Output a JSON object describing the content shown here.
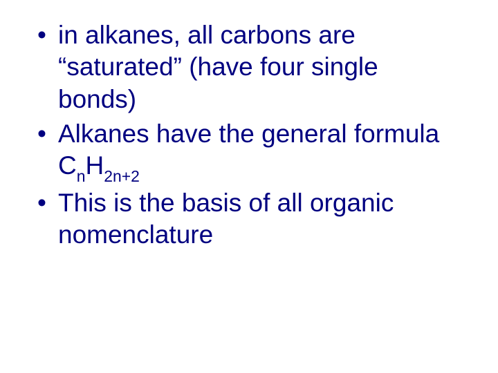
{
  "slide": {
    "text_color": "#000080",
    "background_color": "#ffffff",
    "font_family": "Comic Sans MS",
    "font_size_pt": 37,
    "bullets": [
      {
        "text": "in alkanes, all carbons are “saturated” (have four single bonds)"
      },
      {
        "prefix": "Alkanes have the general formula C",
        "sub1": "n",
        "mid": "H",
        "sub2": "2n+2"
      },
      {
        "text": "This is the basis of all organic nomenclature"
      }
    ]
  }
}
